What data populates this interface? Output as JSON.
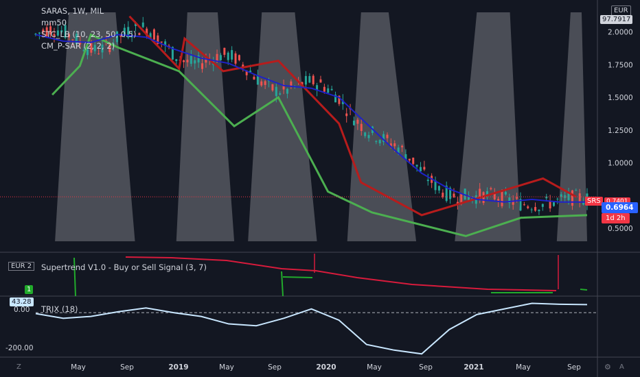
{
  "chart_data": {
    "type": "line",
    "symbol_title": "SARAS, 1W, MIL",
    "currency": "EUR",
    "indicators": [
      "mm50",
      "STC_LB (10, 23, 50, 0.5)",
      "CM_P-SAR (2, 2, 2)"
    ],
    "x_tick_labels": [
      "May",
      "Sep",
      "2019",
      "May",
      "Sep",
      "2020",
      "May",
      "Sep",
      "2021",
      "May",
      "Sep"
    ],
    "y_tick_labels": [
      "2.0000",
      "1.7500",
      "1.5000",
      "1.2500",
      "1.0000",
      "0.5000"
    ],
    "ylim": [
      0.4,
      2.15
    ],
    "price_badges": {
      "top_cut_value": "97.7917",
      "last_price": "0.6964",
      "label_srs": "SRS",
      "label_time": "1d 2h",
      "label_hidden": "0.7401"
    },
    "price_series": [
      {
        "name": "mm50",
        "color": "#1e22c8",
        "x": [
          0.0,
          0.05,
          0.1,
          0.15,
          0.2,
          0.25,
          0.3,
          0.35,
          0.4,
          0.45,
          0.5,
          0.55,
          0.6,
          0.65,
          0.7,
          0.75,
          0.8,
          0.85,
          0.9,
          0.95,
          1.0
        ],
        "y": [
          1.98,
          1.93,
          1.92,
          1.98,
          1.96,
          1.87,
          1.8,
          1.76,
          1.67,
          1.59,
          1.57,
          1.5,
          1.3,
          1.1,
          0.92,
          0.8,
          0.72,
          0.7,
          0.72,
          0.7,
          0.7
        ]
      }
    ],
    "sub_panels": [
      {
        "name": "Supertrend V1.0 - Buy or Sell Signal (3, 7)",
        "scale_label": "EUR 2",
        "signal_label": "1"
      },
      {
        "name": "TRIX (18)",
        "last_value": "43.28",
        "y_tick_labels": [
          "0.00",
          "-200.00"
        ],
        "ylim": [
          -230,
          70
        ],
        "x": [
          0.0,
          0.05,
          0.1,
          0.15,
          0.2,
          0.25,
          0.3,
          0.35,
          0.4,
          0.45,
          0.5,
          0.55,
          0.6,
          0.65,
          0.7,
          0.75,
          0.8,
          0.85,
          0.9,
          0.95,
          1.0
        ],
        "y": [
          -5,
          -30,
          -20,
          5,
          25,
          0,
          -20,
          -60,
          -70,
          -30,
          20,
          -40,
          -170,
          -200,
          -220,
          -90,
          -10,
          20,
          50,
          45,
          43
        ]
      }
    ]
  },
  "ui": {
    "corner_left": "Z",
    "corner_right": "A",
    "gear": "⚙"
  }
}
